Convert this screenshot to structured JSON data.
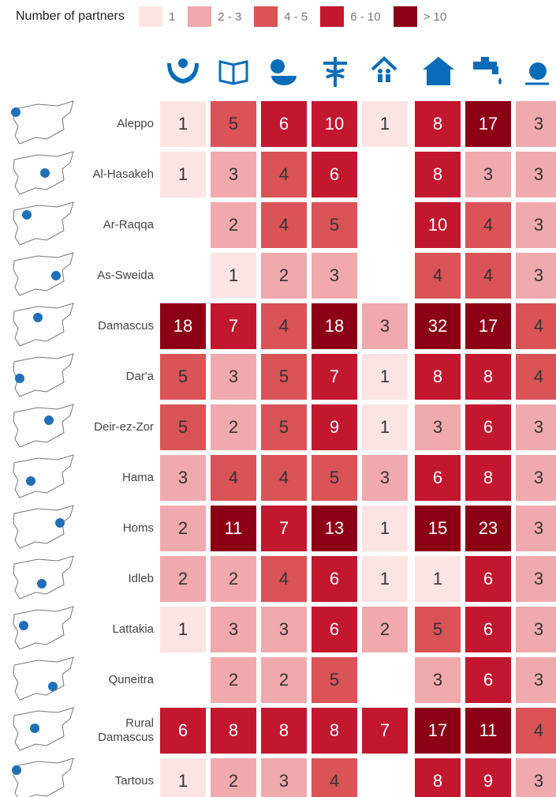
{
  "chart_data": {
    "type": "heatmap",
    "legend_title": "Number of partners",
    "legend": [
      {
        "label": "1",
        "color": "#fce4e4"
      },
      {
        "label": "2 - 3",
        "color": "#f0a9ad"
      },
      {
        "label": "4 - 5",
        "color": "#d95357"
      },
      {
        "label": "6 - 10",
        "color": "#c2172e"
      },
      {
        "label": "> 10",
        "color": "#8c0015"
      }
    ],
    "rows": [
      "Aleppo",
      "Al-Hasakeh",
      "Ar-Raqqa",
      "As-Sweida",
      "Damascus",
      "Dar'a",
      "Deir-ez-Zor",
      "Hama",
      "Homs",
      "Idleb",
      "Lattakia",
      "Quneitra",
      "Rural Damascus",
      "Tartous"
    ],
    "values": [
      [
        1,
        5,
        6,
        10,
        1,
        8,
        17,
        3
      ],
      [
        1,
        3,
        4,
        6,
        null,
        8,
        3,
        3
      ],
      [
        null,
        2,
        4,
        5,
        null,
        10,
        4,
        3
      ],
      [
        null,
        1,
        2,
        3,
        null,
        4,
        4,
        3
      ],
      [
        18,
        7,
        4,
        18,
        3,
        32,
        17,
        4
      ],
      [
        5,
        3,
        5,
        7,
        1,
        8,
        8,
        4
      ],
      [
        5,
        2,
        5,
        9,
        1,
        3,
        6,
        3
      ],
      [
        3,
        4,
        4,
        5,
        3,
        6,
        8,
        3
      ],
      [
        2,
        11,
        7,
        13,
        1,
        15,
        23,
        3
      ],
      [
        2,
        2,
        4,
        6,
        1,
        1,
        6,
        3
      ],
      [
        1,
        3,
        3,
        6,
        2,
        5,
        6,
        3
      ],
      [
        null,
        2,
        2,
        5,
        null,
        3,
        6,
        3
      ],
      [
        6,
        8,
        8,
        8,
        7,
        17,
        11,
        4
      ],
      [
        1,
        2,
        3,
        4,
        null,
        8,
        9,
        3
      ]
    ]
  }
}
